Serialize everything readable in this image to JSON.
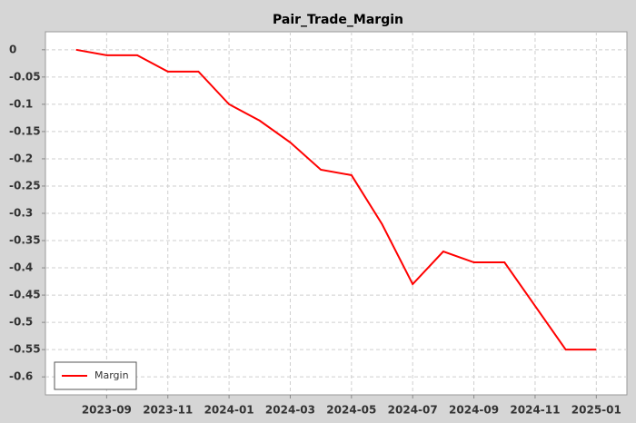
{
  "chart_data": {
    "type": "line",
    "title": "Pair_Trade_Margin",
    "x": [
      "2023-08",
      "2023-09",
      "2023-10",
      "2023-11",
      "2023-12",
      "2024-01",
      "2024-02",
      "2024-03",
      "2024-04",
      "2024-05",
      "2024-06",
      "2024-07",
      "2024-08",
      "2024-09",
      "2024-10",
      "2024-11",
      "2024-12",
      "2025-01"
    ],
    "series": [
      {
        "name": "Margin",
        "color": "#ff0000",
        "values": [
          0,
          -0.01,
          -0.01,
          -0.04,
          -0.04,
          -0.1,
          -0.13,
          -0.17,
          -0.22,
          -0.23,
          -0.32,
          -0.43,
          -0.37,
          -0.39,
          -0.39,
          -0.47,
          -0.55,
          -0.55
        ]
      }
    ],
    "xlim": [
      "2023-07",
      "2025-02"
    ],
    "xticks": [
      "2023-09",
      "2023-11",
      "2024-01",
      "2024-03",
      "2024-05",
      "2024-07",
      "2024-09",
      "2024-11",
      "2025-01"
    ],
    "ylim": [
      -0.633,
      0.033
    ],
    "yticks": [
      0,
      -0.05,
      -0.1,
      -0.15,
      -0.2,
      -0.25,
      -0.3,
      -0.35,
      -0.4,
      -0.45,
      -0.5,
      -0.55,
      -0.6
    ],
    "grid": true,
    "legend": "lower left"
  }
}
